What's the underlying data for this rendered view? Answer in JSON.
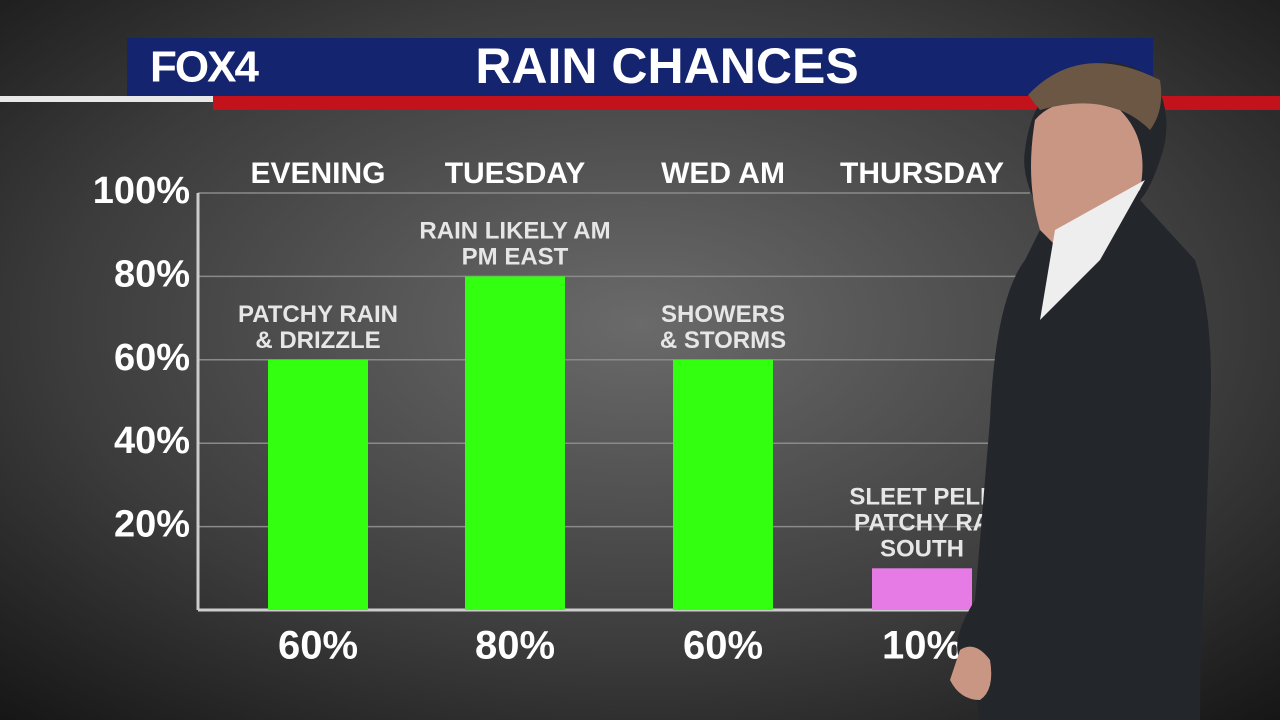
{
  "logo": "FOX4",
  "chart_data": {
    "type": "bar",
    "title": "RAIN CHANCES",
    "categories": [
      "EVENING",
      "TUESDAY",
      "WED AM",
      "THURSDAY"
    ],
    "values": [
      60,
      80,
      60,
      10
    ],
    "value_labels": [
      "60%",
      "80%",
      "60%",
      "10%"
    ],
    "colors": [
      "#33ff11",
      "#33ff11",
      "#33ff11",
      "#e77be6"
    ],
    "annotations": [
      [
        "PATCHY RAIN",
        "& DRIZZLE"
      ],
      [
        "RAIN LIKELY AM",
        "PM EAST"
      ],
      [
        "SHOWERS",
        "& STORMS"
      ],
      [
        "SLEET PELL",
        "PATCHY RA",
        "SOUTH"
      ]
    ],
    "ylim": [
      0,
      100
    ],
    "yticks": [
      {
        "value": 20,
        "label": "20%"
      },
      {
        "value": 40,
        "label": "40%"
      },
      {
        "value": 60,
        "label": "60%"
      },
      {
        "value": 80,
        "label": "80%"
      },
      {
        "value": 100,
        "label": "100%"
      }
    ],
    "grid": true
  }
}
